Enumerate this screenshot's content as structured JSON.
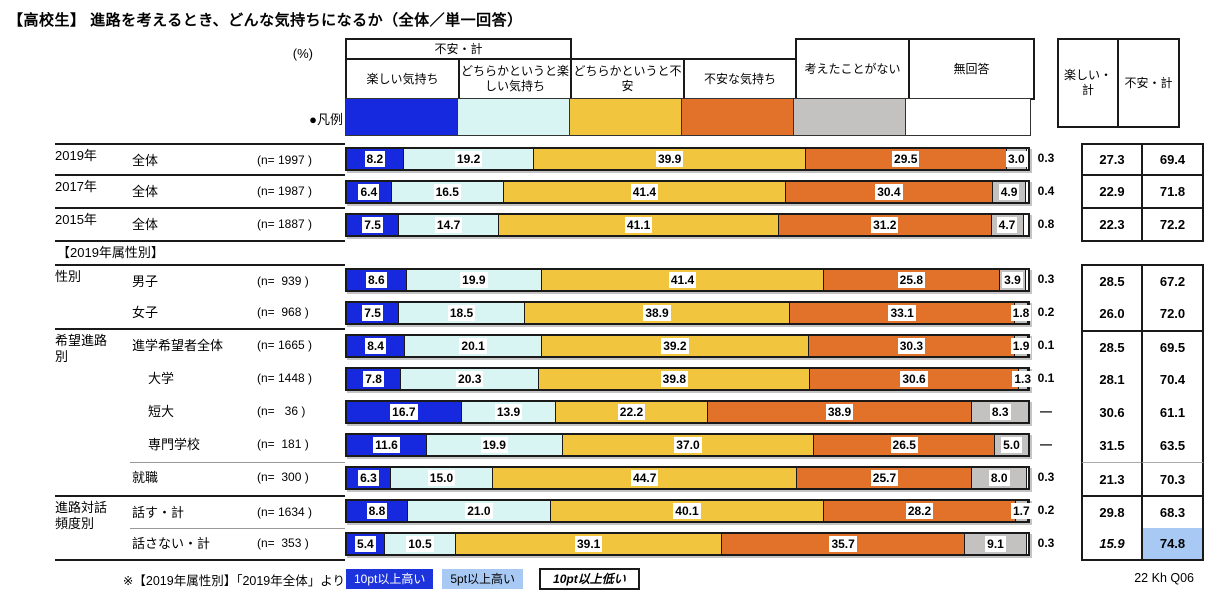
{
  "title": "【高校生】 進路を考えるとき、どんな気持ちになるか（全体／単一回答）",
  "percent_label": "(%)",
  "legend_label": "●凡例",
  "section_header": "【2019年属性別】",
  "source": "22 Kh Q06",
  "columns": {
    "groups": [
      {
        "label": "楽しい・計"
      },
      {
        "label": "不安・計"
      }
    ],
    "subs": [
      "楽しい気持ち",
      "どちらかというと楽しい気持ち",
      "どちらかというと不安",
      "不安な気持ち",
      "考えたことがない",
      "無回答"
    ],
    "summary": [
      "楽しい・計",
      "不安・計"
    ]
  },
  "colors": {
    "fun": "#1629df",
    "somewhat_fun": "#d8f5f4",
    "somewhat_anxious": "#f2c53f",
    "anxious": "#e2712a",
    "never_thought": "#c3c2c1",
    "no_answer": "#ffffff",
    "highlight_high10": "#1d34dd",
    "highlight_high5": "#a7c9f3",
    "border": "#1a1a1a"
  },
  "note": {
    "prefix": "※【2019年属性別】「2019年全体」より",
    "high10": "10pt以上高い",
    "high5": "5pt以上高い",
    "low10": "10pt以上低い"
  },
  "chart_data": {
    "type": "bar",
    "variant": "stacked-horizontal",
    "unit": "%",
    "stack_total": 100,
    "series": [
      {
        "key": "fun",
        "label": "楽しい気持ち",
        "color": "#1629df"
      },
      {
        "key": "somewhat-fun",
        "label": "どちらかというと楽しい気持ち",
        "color": "#d8f5f4"
      },
      {
        "key": "somewhat-anxious",
        "label": "どちらかというと不安",
        "color": "#f2c53f"
      },
      {
        "key": "anxious",
        "label": "不安な気持ち",
        "color": "#e2712a"
      },
      {
        "key": "never-thought",
        "label": "考えたことがない",
        "color": "#c3c2c1"
      },
      {
        "key": "no-answer",
        "label": "無回答",
        "color": "#ffffff"
      }
    ],
    "rows": [
      {
        "group": "2019年",
        "item": "全体",
        "n": "(n= 1997 )",
        "values": [
          8.2,
          19.2,
          39.9,
          29.5,
          3.0
        ],
        "no_answer": "0.3",
        "fun_total": "27.3",
        "anx_total": "69.4"
      },
      {
        "group": "2017年",
        "item": "全体",
        "n": "(n= 1987 )",
        "values": [
          6.4,
          16.5,
          41.4,
          30.4,
          4.9
        ],
        "no_answer": "0.4",
        "fun_total": "22.9",
        "anx_total": "71.8"
      },
      {
        "group": "2015年",
        "item": "全体",
        "n": "(n= 1887 )",
        "values": [
          7.5,
          14.7,
          41.1,
          31.2,
          4.7
        ],
        "no_answer": "0.8",
        "fun_total": "22.3",
        "anx_total": "72.2"
      },
      {
        "group": "性別",
        "item": "男子",
        "n": "(n=  939 )",
        "values": [
          8.6,
          19.9,
          41.4,
          25.8,
          3.9
        ],
        "no_answer": "0.3",
        "fun_total": "28.5",
        "anx_total": "67.2"
      },
      {
        "group": "",
        "item": "女子",
        "n": "(n=  968 )",
        "values": [
          7.5,
          18.5,
          38.9,
          33.1,
          1.8
        ],
        "no_answer": "0.2",
        "fun_total": "26.0",
        "anx_total": "72.0"
      },
      {
        "group": "希望進路別",
        "item": "進学希望者全体",
        "n": "(n= 1665 )",
        "values": [
          8.4,
          20.1,
          39.2,
          30.3,
          1.9
        ],
        "no_answer": "0.1",
        "fun_total": "28.5",
        "anx_total": "69.5"
      },
      {
        "group": "",
        "item": "大学",
        "n": "(n= 1448 )",
        "values": [
          7.8,
          20.3,
          39.8,
          30.6,
          1.3
        ],
        "no_answer": "0.1",
        "fun_total": "28.1",
        "anx_total": "70.4"
      },
      {
        "group": "",
        "item": "短大",
        "n": "(n=   36 )",
        "values": [
          16.7,
          13.9,
          22.2,
          38.9,
          8.3
        ],
        "no_answer": "—",
        "fun_total": "30.6",
        "anx_total": "61.1"
      },
      {
        "group": "",
        "item": "専門学校",
        "n": "(n=  181 )",
        "values": [
          11.6,
          19.9,
          37.0,
          26.5,
          5.0
        ],
        "no_answer": "—",
        "fun_total": "31.5",
        "anx_total": "63.5"
      },
      {
        "group": "",
        "item": "就職",
        "n": "(n=  300 )",
        "values": [
          6.3,
          15.0,
          44.7,
          25.7,
          8.0
        ],
        "no_answer": "0.3",
        "fun_total": "21.3",
        "anx_total": "70.3"
      },
      {
        "group": "進路対話頻度別",
        "item": "話す・計",
        "n": "(n= 1634 )",
        "values": [
          8.8,
          21.0,
          40.1,
          28.2,
          1.7
        ],
        "no_answer": "0.2",
        "fun_total": "29.8",
        "anx_total": "68.3"
      },
      {
        "group": "",
        "item": "話さない・計",
        "n": "(n=  353 )",
        "values": [
          5.4,
          10.5,
          39.1,
          35.7,
          9.1
        ],
        "no_answer": "0.3",
        "fun_total": "15.9",
        "anx_total": "74.8",
        "fun_style": "low10",
        "anx_style": "high5"
      }
    ]
  }
}
